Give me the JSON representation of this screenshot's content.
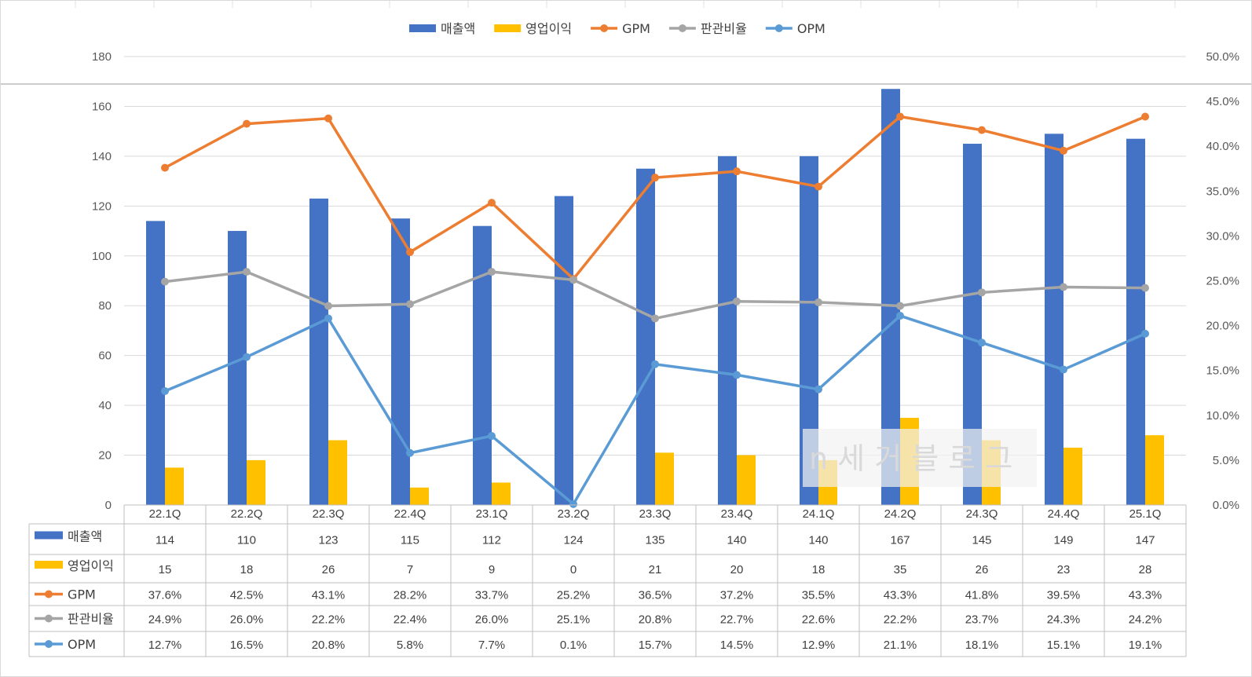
{
  "colors": {
    "revenue": "#4472C4",
    "op_income": "#FFC000",
    "gpm": "#ED7D31",
    "sga_ratio": "#A5A5A5",
    "opm": "#5B9BD5",
    "grid": "#D9D9D9",
    "text": "#595959"
  },
  "watermark": "n 세 거 블 로 그",
  "chart_data": {
    "type": "bar",
    "categories": [
      "22.1Q",
      "22.2Q",
      "22.3Q",
      "22.4Q",
      "23.1Q",
      "23.2Q",
      "23.3Q",
      "23.4Q",
      "24.1Q",
      "24.2Q",
      "24.3Q",
      "24.4Q",
      "25.1Q"
    ],
    "series": [
      {
        "name": "매출액",
        "type": "bar",
        "axis": "left",
        "color": "#4472C4",
        "values": [
          114,
          110,
          123,
          115,
          112,
          124,
          135,
          140,
          140,
          167,
          145,
          149,
          147
        ],
        "labels": [
          "114",
          "110",
          "123",
          "115",
          "112",
          "124",
          "135",
          "140",
          "140",
          "167",
          "145",
          "149",
          "147"
        ]
      },
      {
        "name": "영업이익",
        "type": "bar",
        "axis": "left",
        "color": "#FFC000",
        "values": [
          15,
          18,
          26,
          7,
          9,
          0,
          21,
          20,
          18,
          35,
          26,
          23,
          28
        ],
        "labels": [
          "15",
          "18",
          "26",
          "7",
          "9",
          "0",
          "21",
          "20",
          "18",
          "35",
          "26",
          "23",
          "28"
        ]
      },
      {
        "name": "GPM",
        "type": "line",
        "axis": "right",
        "color": "#ED7D31",
        "values": [
          37.6,
          42.5,
          43.1,
          28.2,
          33.7,
          25.2,
          36.5,
          37.2,
          35.5,
          43.3,
          41.8,
          39.5,
          43.3
        ],
        "labels": [
          "37.6%",
          "42.5%",
          "43.1%",
          "28.2%",
          "33.7%",
          "25.2%",
          "36.5%",
          "37.2%",
          "35.5%",
          "43.3%",
          "41.8%",
          "39.5%",
          "43.3%"
        ]
      },
      {
        "name": "판관비율",
        "type": "line",
        "axis": "right",
        "color": "#A5A5A5",
        "values": [
          24.9,
          26.0,
          22.2,
          22.4,
          26.0,
          25.1,
          20.8,
          22.7,
          22.6,
          22.2,
          23.7,
          24.3,
          24.2
        ],
        "labels": [
          "24.9%",
          "26.0%",
          "22.2%",
          "22.4%",
          "26.0%",
          "25.1%",
          "20.8%",
          "22.7%",
          "22.6%",
          "22.2%",
          "23.7%",
          "24.3%",
          "24.2%"
        ]
      },
      {
        "name": "OPM",
        "type": "line",
        "axis": "right",
        "color": "#5B9BD5",
        "values": [
          12.7,
          16.5,
          20.8,
          5.8,
          7.7,
          0.1,
          15.7,
          14.5,
          12.9,
          21.1,
          18.1,
          15.1,
          19.1
        ],
        "labels": [
          "12.7%",
          "16.5%",
          "20.8%",
          "5.8%",
          "7.7%",
          "0.1%",
          "15.7%",
          "14.5%",
          "12.9%",
          "21.1%",
          "18.1%",
          "15.1%",
          "19.1%"
        ]
      }
    ],
    "y_left": {
      "min": 0,
      "max": 180,
      "ticks": [
        "0",
        "20",
        "40",
        "60",
        "80",
        "100",
        "120",
        "140",
        "160",
        "180"
      ]
    },
    "y_right": {
      "min": 0,
      "max": 50,
      "ticks": [
        "0.0%",
        "5.0%",
        "10.0%",
        "15.0%",
        "20.0%",
        "25.0%",
        "30.0%",
        "35.0%",
        "40.0%",
        "45.0%",
        "50.0%"
      ]
    },
    "legend": "top",
    "grid": true,
    "data_table": true
  }
}
